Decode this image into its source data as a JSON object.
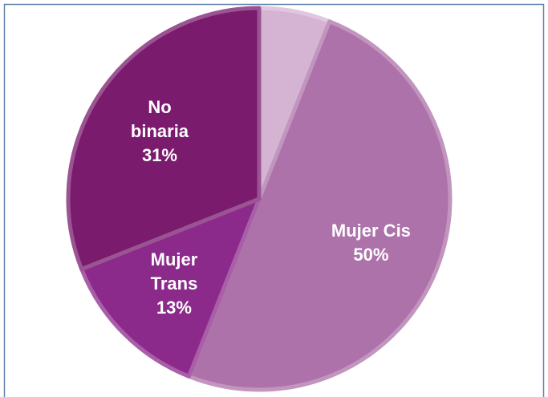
{
  "chart_data": {
    "type": "pie",
    "categories": [
      null,
      "Mujer Cis",
      "Mujer Trans",
      "No binaria"
    ],
    "values": [
      6,
      50,
      13,
      31
    ],
    "value_labels": [
      null,
      "50%",
      "13%",
      "31%"
    ],
    "colors": [
      "#d5b4d3",
      "#ad72aa",
      "#8c2a8b",
      "#7a1b6e"
    ],
    "start_angle": 0,
    "direction": "clockwise"
  }
}
